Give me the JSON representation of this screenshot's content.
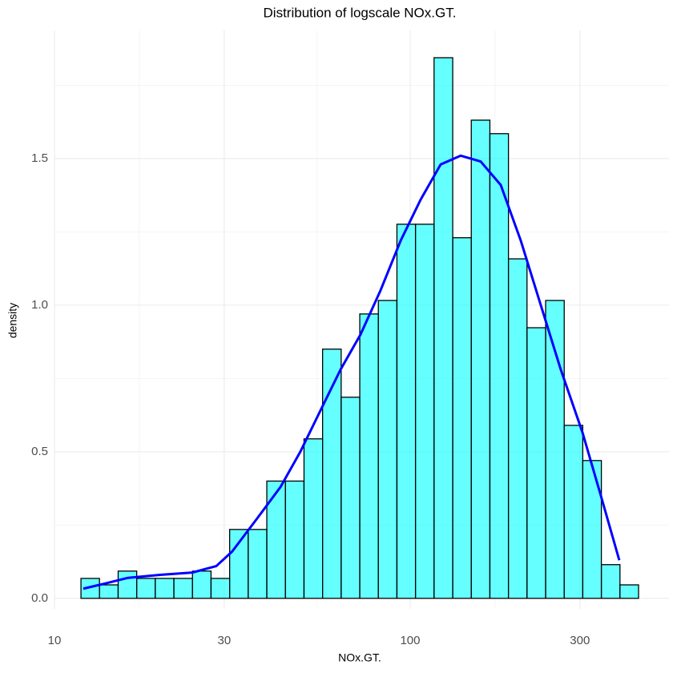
{
  "chart_data": {
    "type": "histogram",
    "title": "Distribution of logscale NOx.GT.",
    "x_label": "NOx.GT.",
    "y_label": "density",
    "xscale": "log",
    "grid": true,
    "color": "#00ffff",
    "edge_color": "#000000",
    "bins": [
      11.87,
      13.38,
      15.1,
      17.03,
      19.2,
      21.66,
      24.43,
      27.55,
      31.08,
      35.05,
      39.53,
      44.59,
      50.29,
      56.72,
      63.97,
      72.15,
      81.37,
      91.77,
      103.5,
      116.7,
      131.7,
      148.5,
      167.5,
      188.9,
      213.0,
      240.3,
      271.0,
      305.6,
      344.7,
      388.8,
      438.5
    ],
    "values": [
      0.068,
      0.046,
      0.093,
      0.068,
      0.068,
      0.068,
      0.093,
      0.068,
      0.235,
      0.235,
      0.4,
      0.4,
      0.544,
      0.85,
      0.686,
      0.97,
      1.016,
      1.276,
      1.276,
      1.844,
      1.23,
      1.631,
      1.585,
      1.158,
      0.923,
      1.016,
      0.59,
      0.47,
      0.115,
      0.046
    ],
    "density_curve": {
      "color": "#0000ff",
      "x": [
        12.05,
        13.8,
        16.1,
        19.8,
        24.4,
        28.5,
        31.6,
        37.0,
        43.2,
        49.1,
        55.9,
        63.7,
        72.5,
        82.5,
        94.0,
        107,
        121.8,
        138.7,
        157.8,
        179.7,
        204.6,
        232.9,
        265.1,
        305.0,
        343.6,
        387.1
      ],
      "values": [
        0.033,
        0.05,
        0.07,
        0.08,
        0.088,
        0.11,
        0.16,
        0.27,
        0.38,
        0.5,
        0.64,
        0.78,
        0.9,
        1.05,
        1.22,
        1.36,
        1.48,
        1.51,
        1.49,
        1.41,
        1.22,
        1.0,
        0.78,
        0.566,
        0.35,
        0.13
      ]
    },
    "xlim": [
      10,
      534
    ],
    "ylim": [
      -0.036,
      1.937
    ],
    "xticks": [
      10,
      30,
      100,
      300
    ],
    "yticks": [
      {
        "value": 0,
        "label": "0.0"
      },
      0.5,
      {
        "value": 1,
        "label": "1.0"
      },
      1.5
    ]
  }
}
